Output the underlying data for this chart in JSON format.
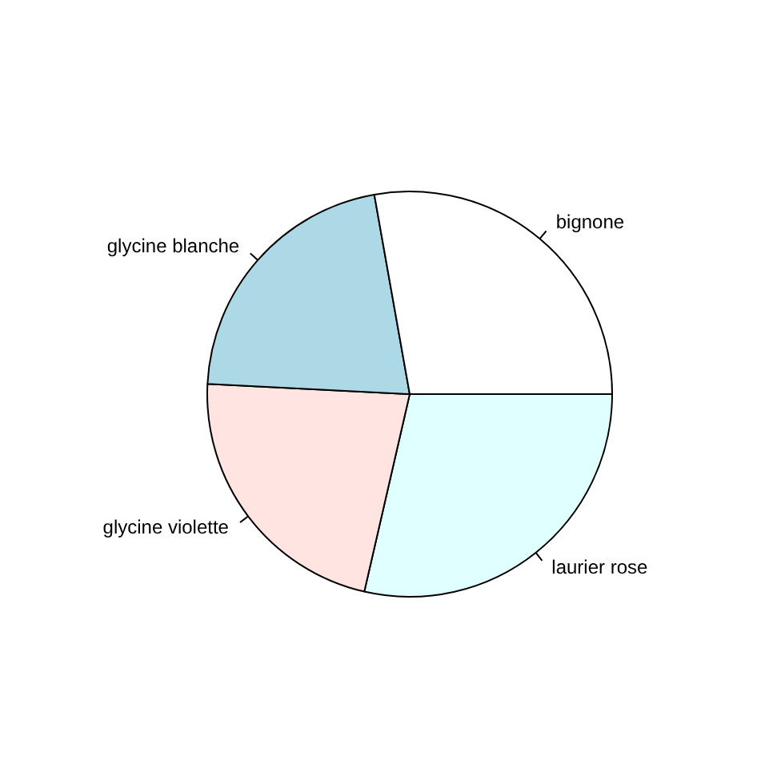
{
  "chart_data": {
    "type": "pie",
    "categories": [
      "bignone",
      "glycine blanche",
      "glycine violette",
      "laurier rose"
    ],
    "values": [
      27.8,
      21.4,
      22.2,
      28.6
    ],
    "colors": [
      "#ffffff",
      "#add8e6",
      "#ffe4e1",
      "#e0ffff"
    ]
  }
}
